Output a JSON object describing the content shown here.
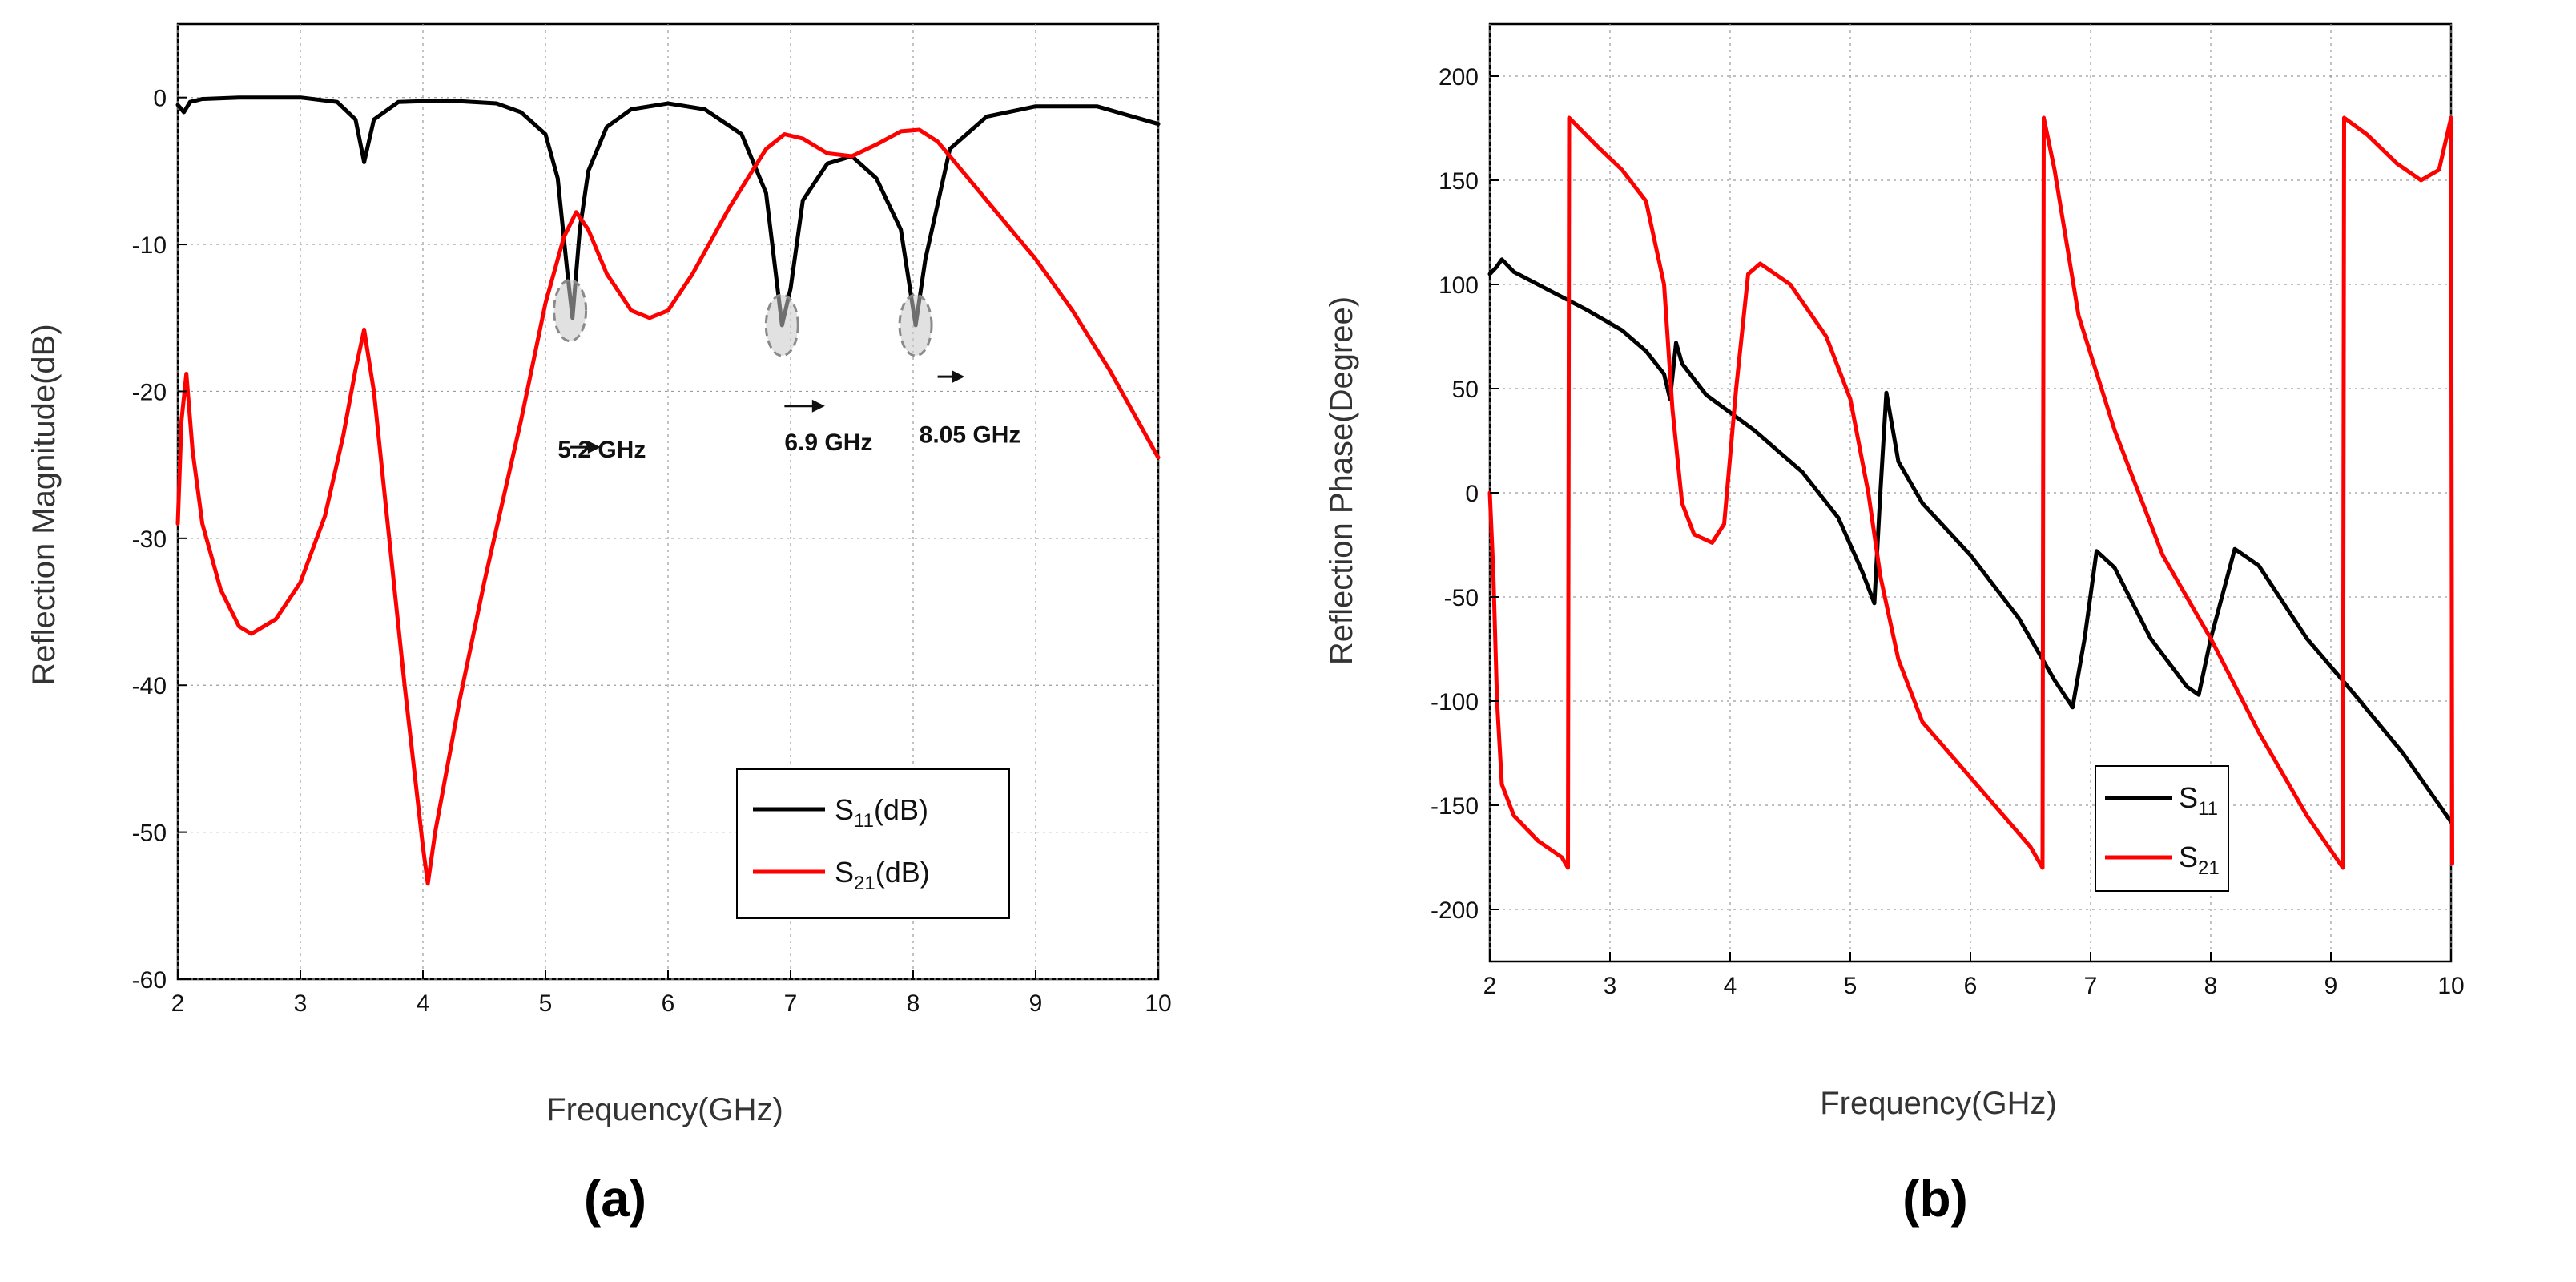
{
  "chart_data": [
    {
      "panel": "a",
      "type": "line",
      "panel_label": "(a)",
      "xlabel": "Frequency(GHz)",
      "ylabel": "Reflection Magnitude(dB)",
      "xlim": [
        2,
        10
      ],
      "ylim": [
        -60,
        5
      ],
      "xticks": [
        2,
        3,
        4,
        5,
        6,
        7,
        8,
        9,
        10
      ],
      "yticks": [
        0,
        -10,
        -20,
        -30,
        -40,
        -50,
        -60
      ],
      "grid": true,
      "legend_position": "bottom-right",
      "series": [
        {
          "name": "S11(dB)",
          "legend_main": "S",
          "legend_sub": "11",
          "legend_suffix": "(dB)",
          "color": "#000000",
          "x": [
            2.0,
            2.05,
            2.1,
            2.2,
            2.5,
            3.0,
            3.3,
            3.45,
            3.52,
            3.6,
            3.8,
            4.2,
            4.6,
            4.8,
            5.0,
            5.1,
            5.18,
            5.22,
            5.28,
            5.35,
            5.5,
            5.7,
            6.0,
            6.3,
            6.6,
            6.8,
            6.93,
            7.0,
            7.1,
            7.3,
            7.5,
            7.7,
            7.9,
            8.02,
            8.1,
            8.3,
            8.6,
            9.0,
            9.5,
            10.0
          ],
          "y": [
            -0.5,
            -1.0,
            -0.3,
            -0.1,
            0.0,
            0.0,
            -0.3,
            -1.5,
            -4.4,
            -1.5,
            -0.3,
            -0.2,
            -0.4,
            -1.0,
            -2.5,
            -5.5,
            -12.0,
            -15.0,
            -9.0,
            -5.0,
            -2.0,
            -0.8,
            -0.4,
            -0.8,
            -2.5,
            -6.5,
            -15.5,
            -13.0,
            -7.0,
            -4.5,
            -4.0,
            -5.5,
            -9.0,
            -15.5,
            -11.0,
            -3.5,
            -1.3,
            -0.6,
            -0.6,
            -1.8
          ]
        },
        {
          "name": "S21(dB)",
          "legend_main": "S",
          "legend_sub": "21",
          "legend_suffix": "(dB)",
          "color": "#ff0000",
          "x": [
            2.0,
            2.03,
            2.07,
            2.12,
            2.2,
            2.35,
            2.5,
            2.6,
            2.8,
            3.0,
            3.2,
            3.35,
            3.45,
            3.52,
            3.6,
            3.7,
            3.85,
            4.0,
            4.04,
            4.1,
            4.3,
            4.5,
            4.8,
            5.0,
            5.15,
            5.25,
            5.35,
            5.5,
            5.7,
            5.85,
            6.0,
            6.2,
            6.5,
            6.8,
            6.95,
            7.1,
            7.3,
            7.5,
            7.7,
            7.9,
            8.05,
            8.2,
            8.4,
            8.7,
            9.0,
            9.3,
            9.6,
            9.8,
            10.0
          ],
          "y": [
            -29.0,
            -22.0,
            -18.8,
            -24.0,
            -29.0,
            -33.5,
            -36.0,
            -36.5,
            -35.5,
            -33.0,
            -28.5,
            -23.0,
            -18.5,
            -15.8,
            -20.0,
            -28.0,
            -40.0,
            -51.0,
            -53.5,
            -50.0,
            -41.0,
            -33.0,
            -22.0,
            -14.0,
            -9.5,
            -7.8,
            -9.0,
            -12.0,
            -14.5,
            -15.0,
            -14.5,
            -12.0,
            -7.5,
            -3.5,
            -2.5,
            -2.8,
            -3.8,
            -4.0,
            -3.2,
            -2.3,
            -2.2,
            -3.0,
            -5.0,
            -8.0,
            -11.0,
            -14.5,
            -18.5,
            -21.5,
            -24.5
          ]
        }
      ],
      "annotations": [
        {
          "text": "5.2 GHz",
          "x": 5.2,
          "y": -14.5,
          "label_x": 5.1,
          "label_y": -24.5,
          "arrow_from_x": 5.2,
          "arrow_to_x": 5.45,
          "arrow_y": -23.8
        },
        {
          "text": "6.9 GHz",
          "x": 6.93,
          "y": -15.5,
          "label_x": 6.95,
          "label_y": -24.0,
          "arrow_from_x": 6.95,
          "arrow_to_x": 7.28,
          "arrow_y": -21.0
        },
        {
          "text": "8.05 GHz",
          "x": 8.02,
          "y": -15.5,
          "label_x": 8.05,
          "label_y": -23.5,
          "arrow_from_x": 8.2,
          "arrow_to_x": 8.42,
          "arrow_y": -19.0
        }
      ]
    },
    {
      "panel": "b",
      "type": "line",
      "panel_label": "(b)",
      "xlabel": "Frequency(GHz)",
      "ylabel": "Reflection Phase(Degree)",
      "xlim": [
        2,
        10
      ],
      "ylim": [
        -225,
        225
      ],
      "xticks": [
        2,
        3,
        4,
        5,
        6,
        7,
        8,
        9,
        10
      ],
      "yticks": [
        200,
        150,
        100,
        50,
        0,
        -50,
        -100,
        -150,
        -200
      ],
      "grid": true,
      "legend_position": "bottom-center",
      "series": [
        {
          "name": "S11",
          "legend_main": "S",
          "legend_sub": "11",
          "legend_suffix": "",
          "color": "#000000",
          "x": [
            2.0,
            2.05,
            2.1,
            2.2,
            2.5,
            2.8,
            3.1,
            3.3,
            3.45,
            3.5,
            3.55,
            3.6,
            3.8,
            4.2,
            4.6,
            4.9,
            5.1,
            5.2,
            5.25,
            5.3,
            5.4,
            5.6,
            6.0,
            6.4,
            6.7,
            6.85,
            6.95,
            7.05,
            7.2,
            7.5,
            7.8,
            7.9,
            8.0,
            8.2,
            8.4,
            8.8,
            9.2,
            9.6,
            10.0
          ],
          "y": [
            105.0,
            108.0,
            112.0,
            106.0,
            97.0,
            88.0,
            78.0,
            68.0,
            57.0,
            45.0,
            72.0,
            62.0,
            47.0,
            30.0,
            10.0,
            -12.0,
            -38.0,
            -53.0,
            0.0,
            48.0,
            15.0,
            -5.0,
            -30.0,
            -60.0,
            -90.0,
            -103.0,
            -70.0,
            -28.0,
            -36.0,
            -70.0,
            -93.0,
            -97.0,
            -70.0,
            -27.0,
            -35.0,
            -70.0,
            -97.0,
            -125.0,
            -158.0
          ]
        },
        {
          "name": "S21",
          "legend_main": "S",
          "legend_sub": "21",
          "legend_suffix": "",
          "color": "#ff0000",
          "x": [
            2.0,
            2.03,
            2.06,
            2.1,
            2.2,
            2.4,
            2.6,
            2.65,
            2.66,
            2.9,
            3.1,
            3.3,
            3.45,
            3.52,
            3.6,
            3.7,
            3.85,
            3.95,
            4.05,
            4.15,
            4.25,
            4.5,
            4.8,
            5.0,
            5.15,
            5.25,
            5.4,
            5.6,
            5.9,
            6.2,
            6.5,
            6.6,
            6.61,
            6.7,
            6.9,
            7.2,
            7.6,
            8.0,
            8.4,
            8.8,
            9.1,
            9.11,
            9.3,
            9.55,
            9.75,
            9.9,
            10.0,
            10.01
          ],
          "y": [
            0.0,
            -40.0,
            -100.0,
            -140.0,
            -155.0,
            -167.0,
            -175.0,
            -180.0,
            180.0,
            166.0,
            155.0,
            140.0,
            100.0,
            40.0,
            -5.0,
            -20.0,
            -24.0,
            -15.0,
            50.0,
            105.0,
            110.0,
            100.0,
            75.0,
            45.0,
            0.0,
            -40.0,
            -80.0,
            -110.0,
            -130.0,
            -150.0,
            -170.0,
            -180.0,
            180.0,
            155.0,
            85.0,
            30.0,
            -30.0,
            -70.0,
            -115.0,
            -155.0,
            -180.0,
            180.0,
            172.0,
            158.0,
            150.0,
            155.0,
            180.0,
            -178.0
          ]
        }
      ]
    }
  ]
}
